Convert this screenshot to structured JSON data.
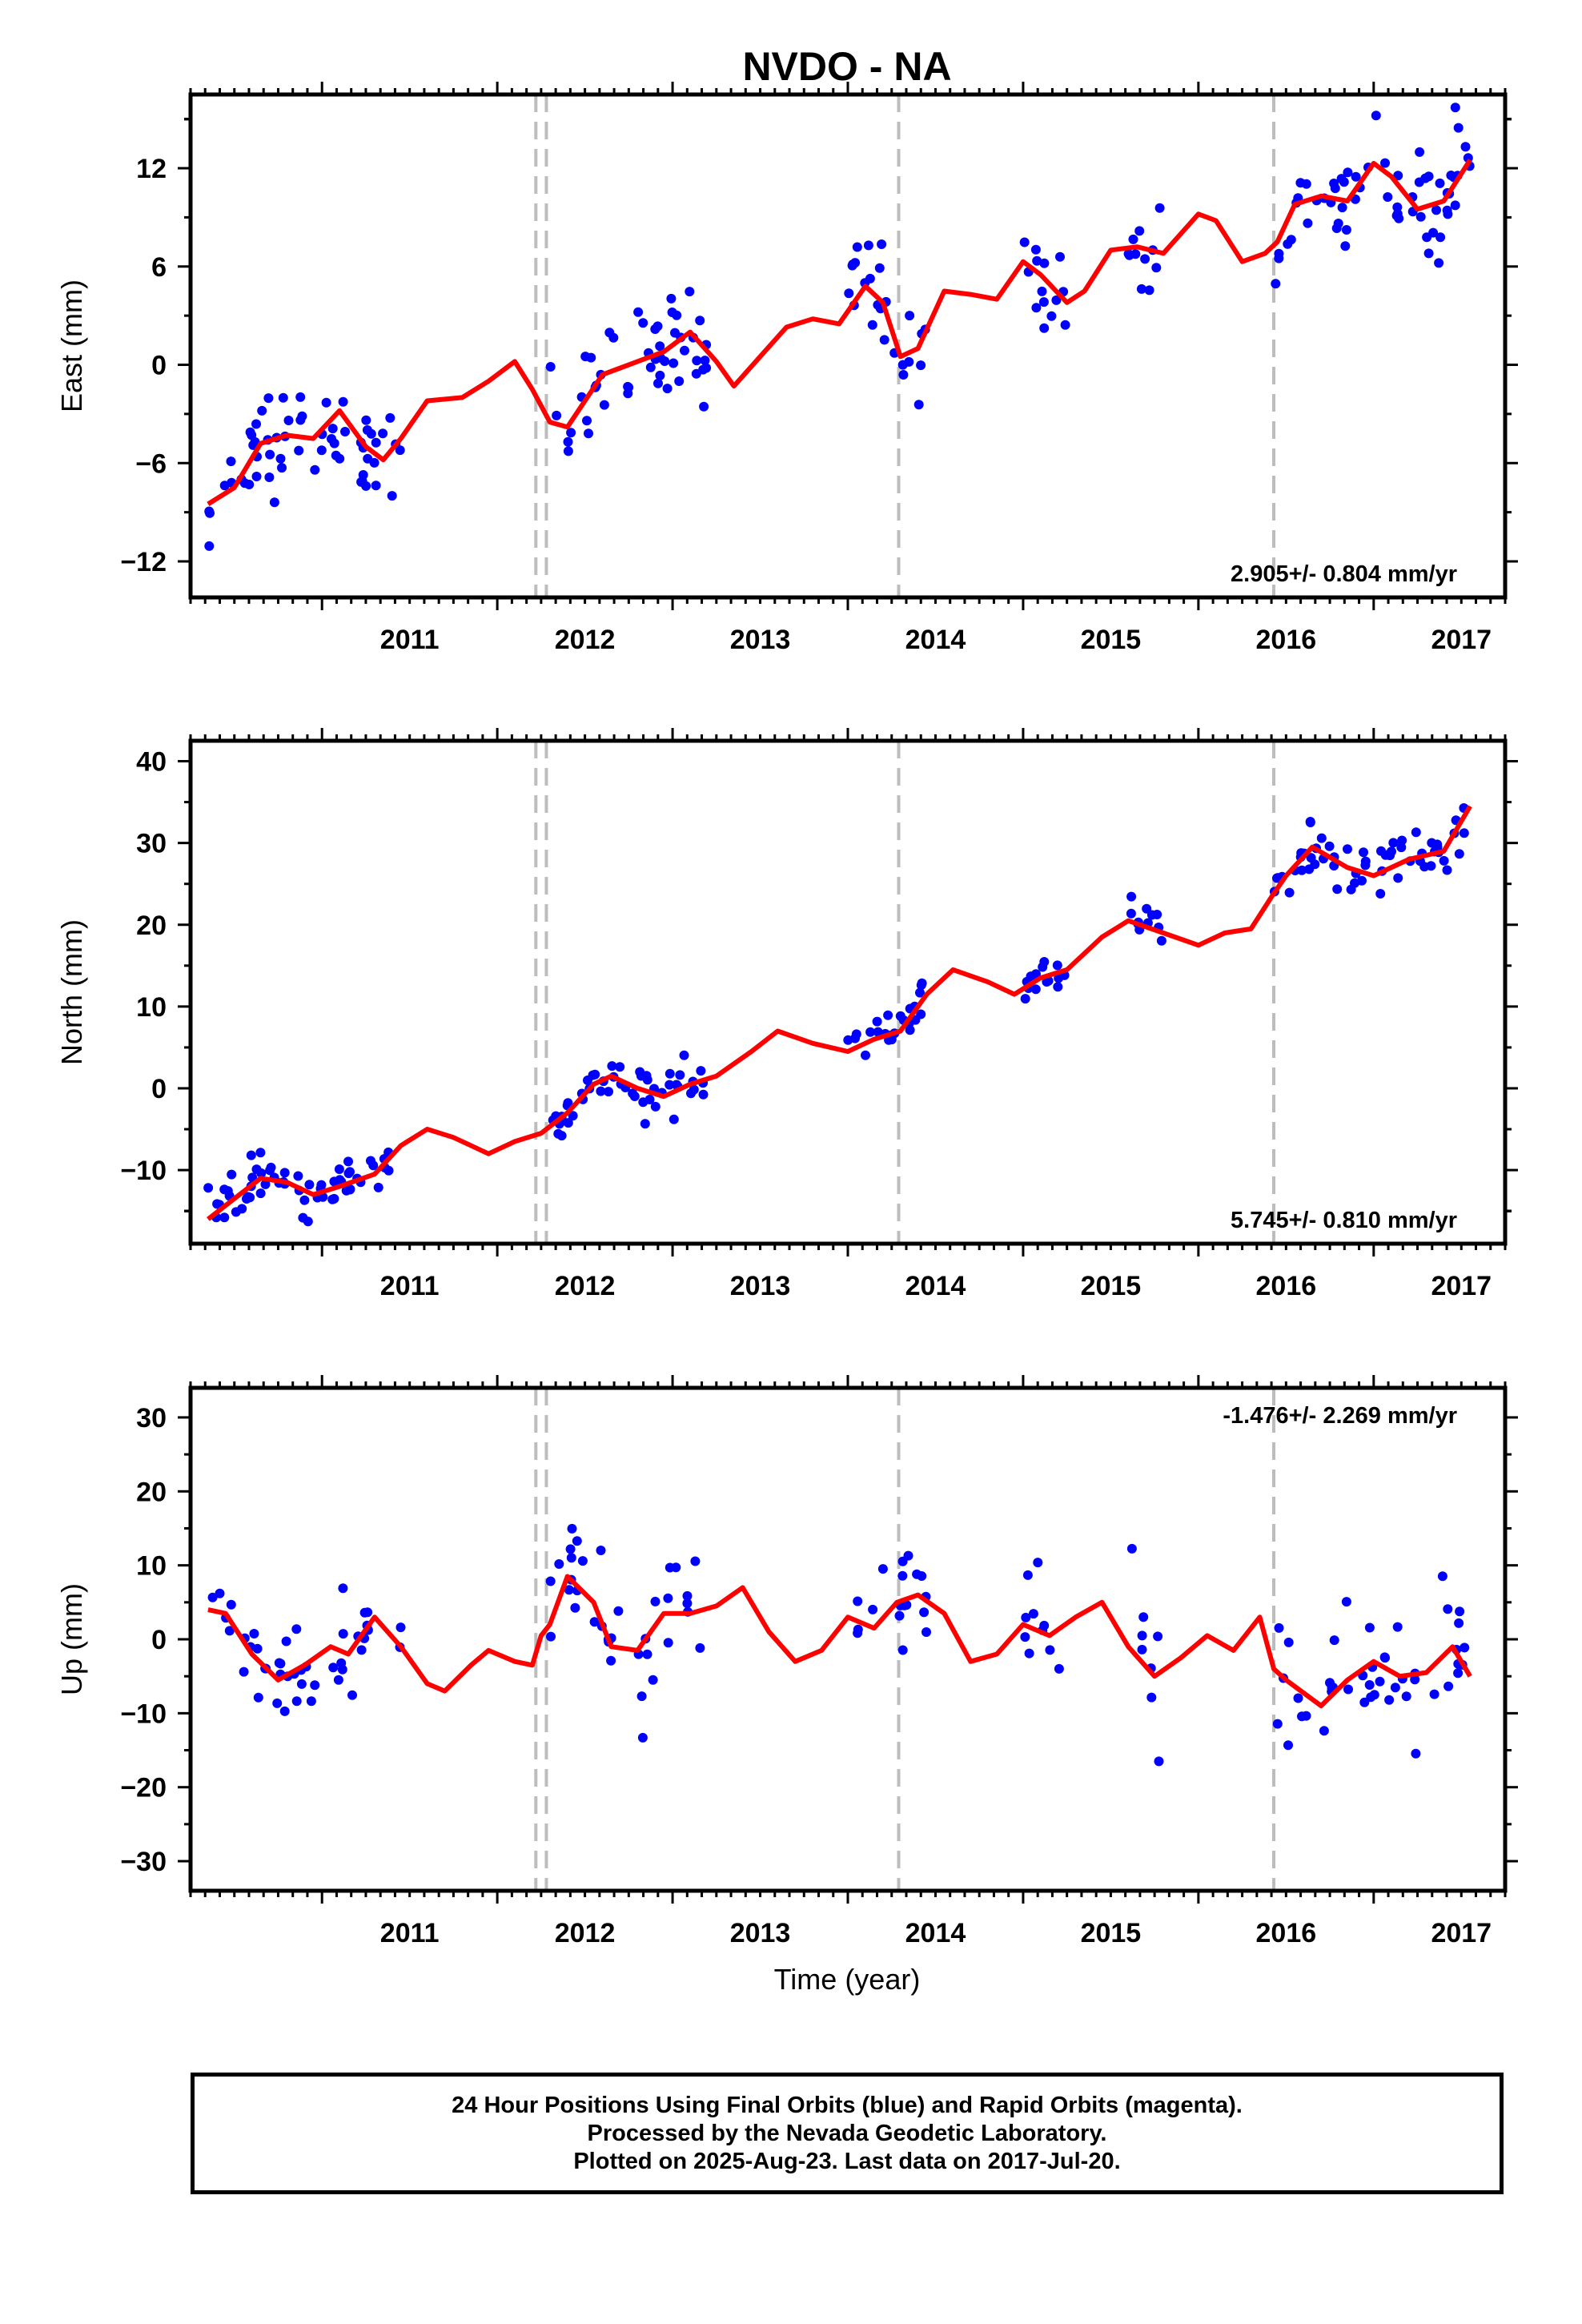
{
  "title": "NVDO - NA",
  "xlabel": "Time (year)",
  "colors": {
    "points": "#0000ff",
    "model": "#ff0000",
    "breaks": "#bdbdbd",
    "frame": "#000000"
  },
  "caption": [
    "24 Hour Positions Using Final Orbits (blue) and Rapid Orbits (magenta).",
    "Processed by the Nevada Geodetic Laboratory.",
    "Plotted on 2025-Aug-23. Last data on 2017-Jul-20."
  ],
  "chart_data": [
    {
      "type": "scatter",
      "ylabel": "East (mm)",
      "rate": "2.905+/- 0.804 mm/yr",
      "rate_position": "bottom-right",
      "xlim": [
        2010.25,
        2017.75
      ],
      "ylim": [
        -14.2,
        16.5
      ],
      "xticks": [
        2011,
        2012,
        2013,
        2014,
        2015,
        2016,
        2017
      ],
      "yticks": [
        -12,
        -6,
        0,
        6,
        12
      ],
      "breaks": [
        2012.22,
        2012.28,
        2014.29,
        2016.43
      ],
      "model": {
        "x": [
          2010.35,
          2010.5,
          2010.65,
          2010.8,
          2010.95,
          2011.1,
          2011.25,
          2011.35,
          2011.45,
          2011.6,
          2011.8,
          2011.95,
          2012.1,
          2012.2,
          2012.25,
          2012.3,
          2012.4,
          2012.6,
          2012.8,
          2012.95,
          2013.1,
          2013.25,
          2013.35,
          2013.5,
          2013.65,
          2013.8,
          2013.95,
          2014.1,
          2014.2,
          2014.3,
          2014.4,
          2014.55,
          2014.7,
          2014.85,
          2015.0,
          2015.1,
          2015.25,
          2015.35,
          2015.5,
          2015.65,
          2015.8,
          2016.0,
          2016.1,
          2016.25,
          2016.38,
          2016.45,
          2016.55,
          2016.7,
          2016.85,
          2017.0,
          2017.1,
          2017.25,
          2017.4,
          2017.55
        ],
        "y": [
          -8.5,
          -7.5,
          -4.8,
          -4.3,
          -4.5,
          -2.8,
          -5.0,
          -5.8,
          -4.5,
          -2.2,
          -2.0,
          -1.0,
          0.2,
          -1.5,
          -2.5,
          -3.5,
          -3.8,
          -0.6,
          0.2,
          0.8,
          2.0,
          0.2,
          -1.3,
          0.5,
          2.3,
          2.8,
          2.5,
          4.8,
          3.8,
          0.5,
          1.0,
          4.5,
          4.3,
          4.0,
          6.3,
          5.5,
          3.8,
          4.5,
          7.0,
          7.2,
          6.8,
          9.2,
          8.8,
          6.3,
          6.8,
          7.5,
          9.8,
          10.3,
          10.0,
          12.3,
          11.5,
          9.5,
          10.0,
          12.5
        ]
      }
    },
    {
      "type": "scatter",
      "ylabel": "North (mm)",
      "rate": "5.745+/- 0.810 mm/yr",
      "rate_position": "bottom-right",
      "xlim": [
        2010.25,
        2017.75
      ],
      "ylim": [
        -19,
        42.5
      ],
      "xticks": [
        2011,
        2012,
        2013,
        2014,
        2015,
        2016,
        2017
      ],
      "yticks": [
        -10,
        0,
        10,
        20,
        30,
        40
      ],
      "breaks": [
        2012.22,
        2012.28,
        2014.29,
        2016.43
      ],
      "model": {
        "x": [
          2010.35,
          2010.5,
          2010.65,
          2010.8,
          2010.95,
          2011.1,
          2011.3,
          2011.45,
          2011.6,
          2011.75,
          2011.95,
          2012.1,
          2012.25,
          2012.4,
          2012.55,
          2012.65,
          2012.8,
          2012.95,
          2013.1,
          2013.25,
          2013.45,
          2013.6,
          2013.8,
          2014.0,
          2014.15,
          2014.3,
          2014.45,
          2014.6,
          2014.8,
          2014.95,
          2015.1,
          2015.25,
          2015.45,
          2015.6,
          2015.8,
          2016.0,
          2016.15,
          2016.3,
          2016.42,
          2016.5,
          2016.65,
          2016.85,
          2017.0,
          2017.2,
          2017.4,
          2017.55
        ],
        "y": [
          -16.0,
          -13.5,
          -11.0,
          -11.5,
          -13.0,
          -12.0,
          -10.5,
          -7.0,
          -5.0,
          -6.0,
          -8.0,
          -6.5,
          -5.5,
          -3.0,
          0.5,
          1.5,
          0.0,
          -1.0,
          0.5,
          1.5,
          4.5,
          7.0,
          5.5,
          4.5,
          6.0,
          7.0,
          11.5,
          14.5,
          13.0,
          11.5,
          13.5,
          14.5,
          18.5,
          20.5,
          19.0,
          17.5,
          19.0,
          19.5,
          23.5,
          26.0,
          29.5,
          27.0,
          26.0,
          28.0,
          29.0,
          34.5
        ]
      }
    },
    {
      "type": "scatter",
      "ylabel": "Up (mm)",
      "rate": "-1.476+/- 2.269 mm/yr",
      "rate_position": "top-right",
      "xlim": [
        2010.25,
        2017.75
      ],
      "ylim": [
        -34,
        34
      ],
      "xticks": [
        2011,
        2012,
        2013,
        2014,
        2015,
        2016,
        2017
      ],
      "yticks": [
        -30,
        -20,
        -10,
        0,
        10,
        20,
        30
      ],
      "breaks": [
        2012.22,
        2012.28,
        2014.29,
        2016.43
      ],
      "model": {
        "x": [
          2010.35,
          2010.45,
          2010.6,
          2010.75,
          2010.9,
          2011.05,
          2011.15,
          2011.3,
          2011.45,
          2011.6,
          2011.7,
          2011.85,
          2011.95,
          2012.1,
          2012.2,
          2012.25,
          2012.3,
          2012.4,
          2012.55,
          2012.65,
          2012.8,
          2012.95,
          2013.1,
          2013.25,
          2013.4,
          2013.55,
          2013.7,
          2013.85,
          2014.0,
          2014.15,
          2014.28,
          2014.4,
          2014.55,
          2014.7,
          2014.85,
          2015.0,
          2015.15,
          2015.3,
          2015.45,
          2015.6,
          2015.75,
          2015.9,
          2016.05,
          2016.2,
          2016.35,
          2016.43,
          2016.5,
          2016.7,
          2016.85,
          2017.0,
          2017.15,
          2017.3,
          2017.45,
          2017.55
        ],
        "y": [
          4.0,
          3.5,
          -2.0,
          -5.5,
          -3.5,
          -1.0,
          -2.0,
          3.0,
          -1.0,
          -6.0,
          -7.0,
          -3.5,
          -1.5,
          -3.0,
          -3.5,
          0.5,
          2.0,
          8.5,
          5.0,
          -1.0,
          -1.5,
          3.5,
          3.5,
          4.5,
          7.0,
          1.0,
          -3.0,
          -1.5,
          3.0,
          1.5,
          5.0,
          6.0,
          3.5,
          -3.0,
          -2.0,
          2.0,
          0.5,
          3.0,
          5.0,
          -1.0,
          -5.0,
          -2.5,
          0.5,
          -1.5,
          3.0,
          -4.0,
          -5.5,
          -9.0,
          -5.5,
          -3.0,
          -5.0,
          -4.5,
          -1.0,
          -5.0
        ]
      }
    }
  ]
}
